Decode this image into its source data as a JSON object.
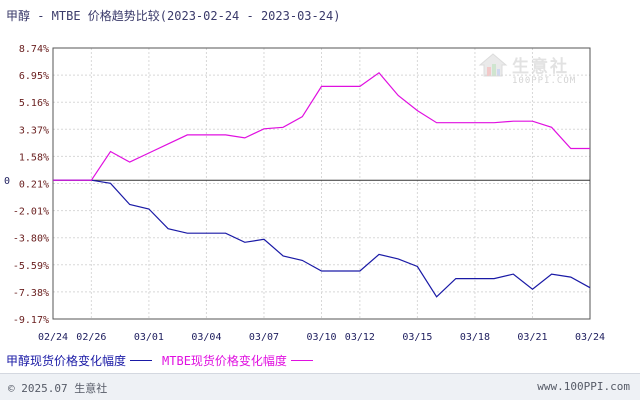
{
  "title": "甲醇 - MTBE 价格趋势比较(2023-02-24 - 2023-03-24)",
  "watermark": {
    "name": "生意社",
    "url": "100PPI.COM"
  },
  "footer": {
    "copyright": "© 2025.07 生意社",
    "site": "www.100PPI.com"
  },
  "colors": {
    "methanol": "#1a1aa6",
    "mtbe": "#e010e0",
    "grid": "#d8d8d8",
    "axis": "#555555",
    "zero_line": "#333333"
  },
  "chart_data": {
    "type": "line",
    "title": "甲醇 - MTBE 价格趋势比较(2023-02-24 - 2023-03-24)",
    "ylim": [
      -9.17,
      8.74
    ],
    "yticks": [
      "8.74%",
      "6.95%",
      "5.16%",
      "3.37%",
      "1.58%",
      "0.21%",
      "-2.01%",
      "-3.80%",
      "-5.59%",
      "-7.38%",
      "-9.17%"
    ],
    "zero_label": "0",
    "xticks": [
      "02/24",
      "02/26",
      "03/01",
      "03/04",
      "03/07",
      "03/10",
      "03/12",
      "03/15",
      "03/18",
      "03/21",
      "03/24"
    ],
    "grid": true,
    "legend_position": "bottom-left",
    "series": [
      {
        "name": "甲醇现货价格变化幅度",
        "color": "#1a1aa6",
        "points": [
          [
            "02/24",
            0
          ],
          [
            "02/25",
            0
          ],
          [
            "02/26",
            0
          ],
          [
            "02/27",
            -0.2
          ],
          [
            "02/28",
            -1.6
          ],
          [
            "03/01",
            -1.9
          ],
          [
            "03/02",
            -3.2
          ],
          [
            "03/03",
            -3.5
          ],
          [
            "03/04",
            -3.5
          ],
          [
            "03/05",
            -3.5
          ],
          [
            "03/06",
            -4.1
          ],
          [
            "03/07",
            -3.9
          ],
          [
            "03/08",
            -5.0
          ],
          [
            "03/09",
            -5.3
          ],
          [
            "03/10",
            -6.0
          ],
          [
            "03/11",
            -6.0
          ],
          [
            "03/12",
            -6.0
          ],
          [
            "03/13",
            -4.9
          ],
          [
            "03/14",
            -5.2
          ],
          [
            "03/15",
            -5.7
          ],
          [
            "03/16",
            -7.7
          ],
          [
            "03/17",
            -6.5
          ],
          [
            "03/18",
            -6.5
          ],
          [
            "03/19",
            -6.5
          ],
          [
            "03/20",
            -6.2
          ],
          [
            "03/21",
            -7.2
          ],
          [
            "03/22",
            -6.2
          ],
          [
            "03/23",
            -6.4
          ],
          [
            "03/24",
            -7.1
          ]
        ]
      },
      {
        "name": "MTBE现货价格变化幅度",
        "color": "#e010e0",
        "points": [
          [
            "02/24",
            0
          ],
          [
            "02/25",
            0
          ],
          [
            "02/26",
            0
          ],
          [
            "02/27",
            1.9
          ],
          [
            "02/28",
            1.2
          ],
          [
            "03/01",
            1.8
          ],
          [
            "03/02",
            2.4
          ],
          [
            "03/03",
            3.0
          ],
          [
            "03/04",
            3.0
          ],
          [
            "03/05",
            3.0
          ],
          [
            "03/06",
            2.8
          ],
          [
            "03/07",
            3.4
          ],
          [
            "03/08",
            3.5
          ],
          [
            "03/09",
            4.2
          ],
          [
            "03/10",
            6.2
          ],
          [
            "03/11",
            6.2
          ],
          [
            "03/12",
            6.2
          ],
          [
            "03/13",
            7.1
          ],
          [
            "03/14",
            5.6
          ],
          [
            "03/15",
            4.6
          ],
          [
            "03/16",
            3.8
          ],
          [
            "03/17",
            3.8
          ],
          [
            "03/18",
            3.8
          ],
          [
            "03/19",
            3.8
          ],
          [
            "03/20",
            3.9
          ],
          [
            "03/21",
            3.9
          ],
          [
            "03/22",
            3.5
          ],
          [
            "03/23",
            2.1
          ],
          [
            "03/24",
            2.1
          ]
        ]
      }
    ]
  }
}
